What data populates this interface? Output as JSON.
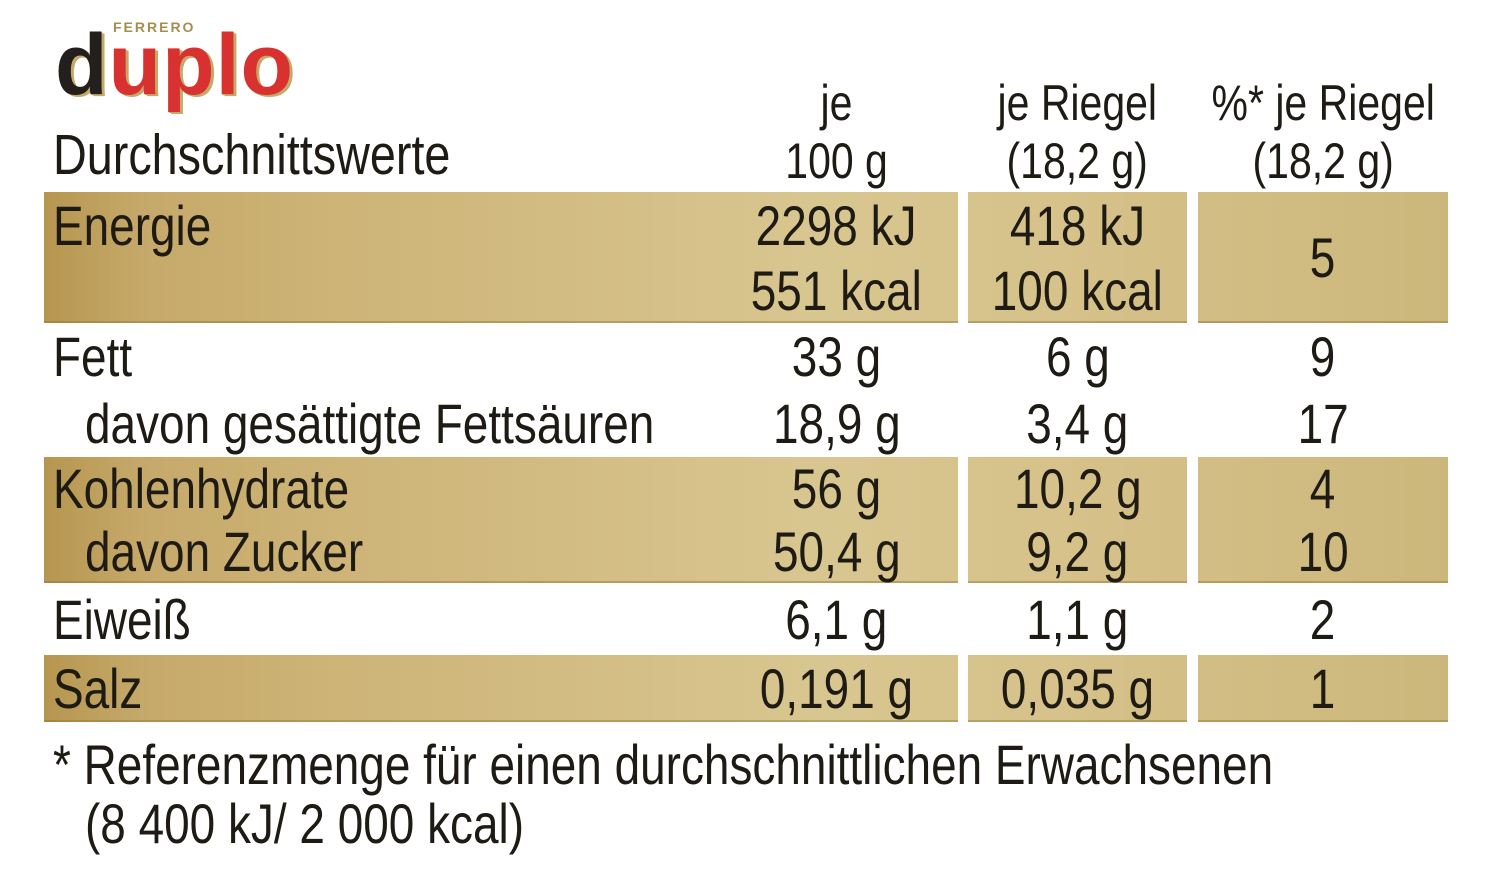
{
  "brand": {
    "ferrero_label": "FERRERO",
    "logo_black": "d",
    "logo_red": "uplo",
    "colors": {
      "logo_red": "#d93030",
      "logo_gold": "#c3aa6a",
      "row_gold_mid": "#d8c690"
    }
  },
  "table": {
    "title": "Durchschnittswerte",
    "col_headers": {
      "per100": {
        "line1": "je",
        "line2": "100 g"
      },
      "riegel": {
        "line1": "je Riegel",
        "line2": "(18,2 g)"
      },
      "percent": {
        "line1": "%* je Riegel",
        "line2": "(18,2 g)"
      }
    },
    "rows": [
      {
        "label": "Energie",
        "per100_l1": "2298 kJ",
        "per100_l2": "551 kcal",
        "riegel_l1": "418 kJ",
        "riegel_l2": "100 kcal",
        "percent": "5"
      },
      {
        "label": "Fett",
        "per100": "33 g",
        "riegel": "6 g",
        "percent": "9"
      },
      {
        "label": "davon gesättigte Fettsäuren",
        "per100": "18,9 g",
        "riegel": "3,4 g",
        "percent": "17"
      },
      {
        "label": "Kohlenhydrate",
        "per100": "56 g",
        "riegel": "10,2 g",
        "percent": "4"
      },
      {
        "label": "davon Zucker",
        "per100": "50,4 g",
        "riegel": "9,2 g",
        "percent": "10"
      },
      {
        "label": "Eiweiß",
        "per100": "6,1 g",
        "riegel": "1,1 g",
        "percent": "2"
      },
      {
        "label": "Salz",
        "per100": "0,191 g",
        "riegel": "0,035 g",
        "percent": "1"
      }
    ]
  },
  "footnote": {
    "line1": "* Referenzmenge für einen durchschnittlichen Erwachsenen",
    "line2": "(8 400 kJ/ 2 000 kcal)"
  }
}
